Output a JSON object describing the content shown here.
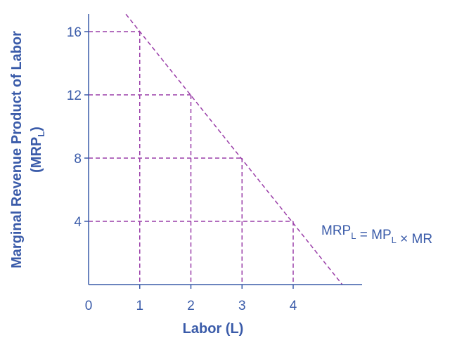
{
  "chart_data": {
    "type": "line",
    "xlabel": "Labor (L)",
    "ylabel_main": "Marginal Revenue Product of Labor",
    "ylabel_sym": "(MRP",
    "ylabel_sym_sub": "L",
    "ylabel_sym_close": ")",
    "xlim": [
      0,
      5.35
    ],
    "ylim": [
      0,
      17.6
    ],
    "x_ticks": [
      {
        "value": 0,
        "label": "0"
      },
      {
        "value": 1,
        "label": "1"
      },
      {
        "value": 2,
        "label": "2"
      },
      {
        "value": 3,
        "label": "3"
      },
      {
        "value": 4,
        "label": "4"
      }
    ],
    "y_ticks": [
      {
        "value": 4,
        "label": "4"
      },
      {
        "value": 8,
        "label": "8"
      },
      {
        "value": 12,
        "label": "12"
      },
      {
        "value": 16,
        "label": "16"
      }
    ],
    "series": [
      {
        "line": [
          {
            "x": 0.73,
            "y": 17.1
          },
          {
            "x": 4.96,
            "y": 0
          }
        ],
        "points": [
          {
            "x": 1,
            "y": 16
          },
          {
            "x": 2,
            "y": 12
          },
          {
            "x": 3,
            "y": 8
          },
          {
            "x": 4,
            "y": 4
          }
        ],
        "style": "dashed",
        "color": "#9a3ea8"
      }
    ],
    "annotation": {
      "parts": [
        {
          "text": "MRP",
          "sub": "L"
        },
        {
          "text": " = MP",
          "sub": "L"
        },
        {
          "text": " × MR",
          "sub": ""
        }
      ]
    },
    "colors": {
      "axis": "#3a5ba9",
      "curve": "#9a3ea8"
    }
  }
}
